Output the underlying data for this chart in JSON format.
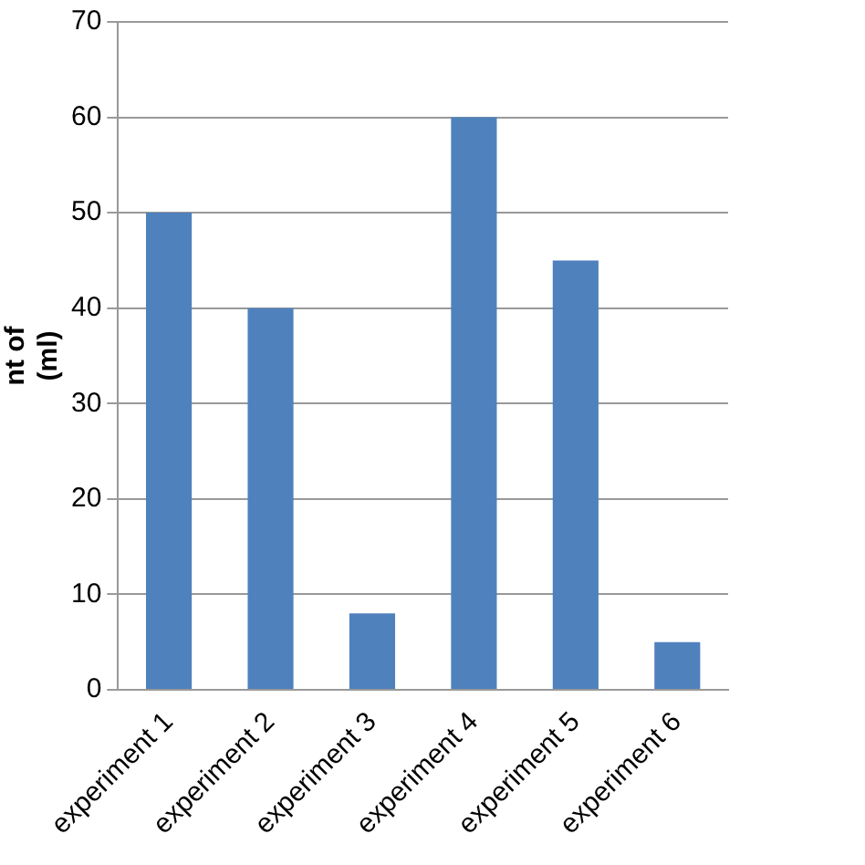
{
  "chart_data": {
    "type": "bar",
    "ylabel": "nt of\n(ml)",
    "categories": [
      "experiment 1",
      "experiment 2",
      "experiment 3",
      "experiment 4",
      "experiment 5",
      "experiment 6"
    ],
    "values": [
      50,
      40,
      8,
      60,
      45,
      5
    ],
    "color": "#4f81bd",
    "ylim": [
      0,
      70
    ],
    "yticks": [
      0,
      10,
      20,
      30,
      40,
      50,
      60,
      70
    ],
    "grid": "y",
    "legend": false
  }
}
